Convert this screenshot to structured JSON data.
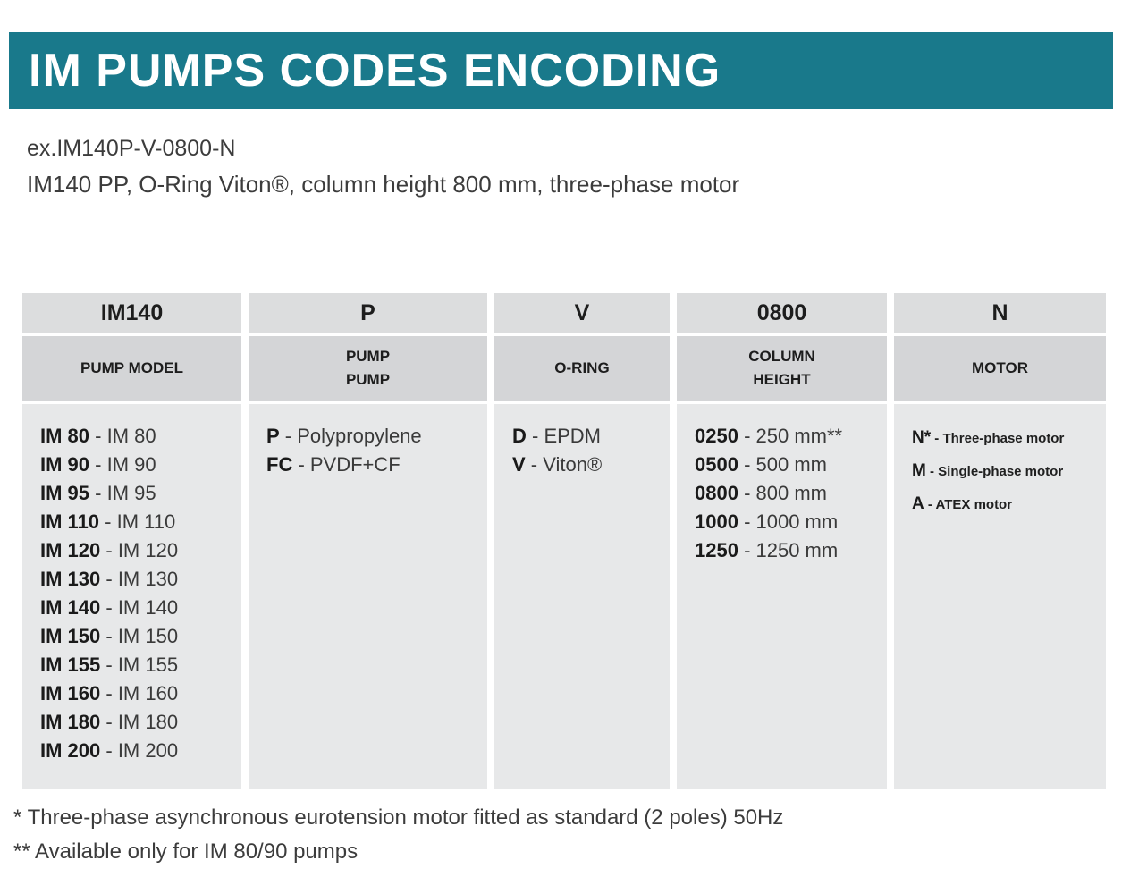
{
  "banner": {
    "title": "IM PUMPS CODES ENCODING",
    "color": "#19798b"
  },
  "example": {
    "code": "ex.IM140P-V-0800-N",
    "description": "IM140 PP, O-Ring Viton®, column height 800 mm, three-phase motor"
  },
  "table": {
    "columns": [
      {
        "id": "pump-model",
        "code": "IM140",
        "label": "PUMP MODEL",
        "items": [
          {
            "code": "IM 80",
            "desc": "- IM 80"
          },
          {
            "code": "IM 90",
            "desc": "- IM 90"
          },
          {
            "code": "IM 95",
            "desc": "- IM 95"
          },
          {
            "code": "IM 110",
            "desc": "- IM 110"
          },
          {
            "code": "IM 120",
            "desc": "- IM 120"
          },
          {
            "code": "IM 130",
            "desc": "- IM 130"
          },
          {
            "code": "IM 140",
            "desc": "- IM 140"
          },
          {
            "code": "IM 150",
            "desc": "- IM 150"
          },
          {
            "code": "IM 155",
            "desc": "- IM 155"
          },
          {
            "code": "IM 160",
            "desc": "- IM 160"
          },
          {
            "code": "IM 180",
            "desc": "- IM 180"
          },
          {
            "code": "IM 200",
            "desc": "- IM 200"
          }
        ]
      },
      {
        "id": "pump-body",
        "code": "P",
        "label": "PUMP\nPUMP",
        "items": [
          {
            "code": "P",
            "desc": "- Polypropylene"
          },
          {
            "code": "FC",
            "desc": "- PVDF+CF"
          }
        ]
      },
      {
        "id": "o-ring",
        "code": "V",
        "label": "O-RING",
        "items": [
          {
            "code": "D",
            "desc": "- EPDM"
          },
          {
            "code": "V",
            "desc": "- Viton®"
          }
        ]
      },
      {
        "id": "column-height",
        "code": "0800",
        "label": "COLUMN\nHEIGHT",
        "items": [
          {
            "code": "0250",
            "desc": "- 250 mm**"
          },
          {
            "code": "0500",
            "desc": "- 500 mm"
          },
          {
            "code": "0800",
            "desc": "- 800 mm"
          },
          {
            "code": "1000",
            "desc": "- 1000 mm"
          },
          {
            "code": "1250",
            "desc": "- 1250 mm"
          }
        ]
      },
      {
        "id": "motor",
        "code": "N",
        "label": "MOTOR",
        "items": [
          {
            "code": "N*",
            "desc": "- Three-phase motor"
          },
          {
            "code": "M",
            "desc": "- Single-phase motor"
          },
          {
            "code": "A",
            "desc": "- ATEX motor"
          }
        ]
      }
    ]
  },
  "footnotes": [
    "* Three-phase asynchronous eurotension motor fitted as standard (2 poles) 50Hz",
    "** Available only for IM 80/90 pumps"
  ]
}
